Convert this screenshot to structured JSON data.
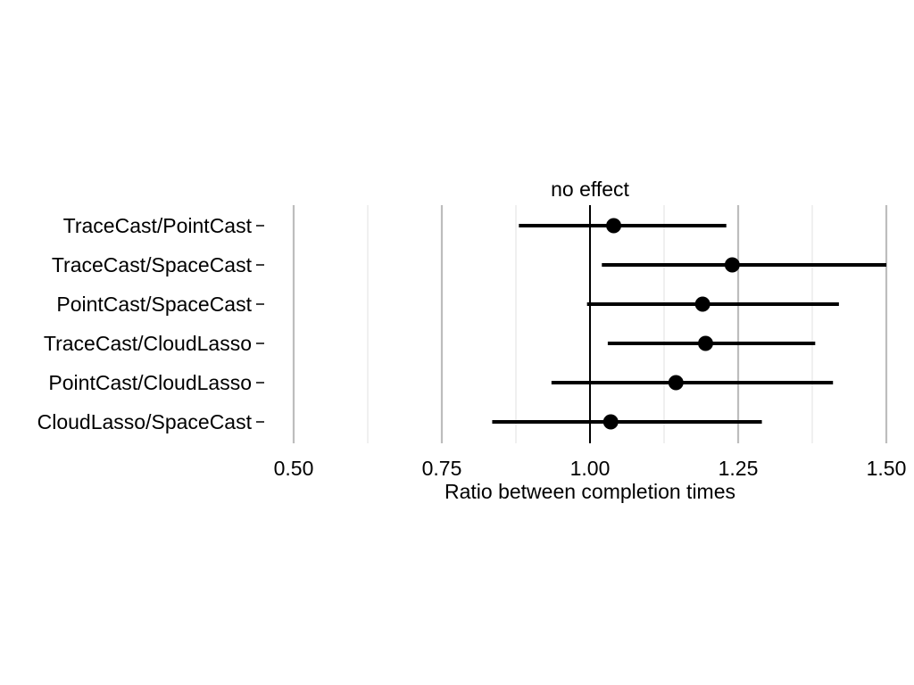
{
  "chart_data": {
    "type": "scatter",
    "subtype": "forest-plot",
    "xlabel": "Ratio between completion times",
    "ylabel": "",
    "xlim": [
      0.5,
      1.5
    ],
    "x_ticks": [
      0.5,
      0.75,
      1.0,
      1.25,
      1.5
    ],
    "x_tick_labels": [
      "0.50",
      "0.75",
      "1.00",
      "1.25",
      "1.50"
    ],
    "grid": "vertical",
    "reference_line": {
      "x": 1.0,
      "label": "no effect"
    },
    "rows": [
      {
        "label": "TraceCast/PointCast",
        "estimate": 1.04,
        "lower": 0.88,
        "upper": 1.23
      },
      {
        "label": "TraceCast/SpaceCast",
        "estimate": 1.24,
        "lower": 1.02,
        "upper": 1.5
      },
      {
        "label": "PointCast/SpaceCast",
        "estimate": 1.19,
        "lower": 0.995,
        "upper": 1.42
      },
      {
        "label": "TraceCast/CloudLasso",
        "estimate": 1.195,
        "lower": 1.03,
        "upper": 1.38
      },
      {
        "label": "PointCast/CloudLasso",
        "estimate": 1.145,
        "lower": 0.935,
        "upper": 1.41
      },
      {
        "label": "CloudLasso/SpaceCast",
        "estimate": 1.035,
        "lower": 0.835,
        "upper": 1.29
      }
    ],
    "colors": {
      "point": "#000000",
      "interval": "#000000",
      "major_grid": "#bdbdbd",
      "minor_grid": "#e6e6e6"
    }
  }
}
